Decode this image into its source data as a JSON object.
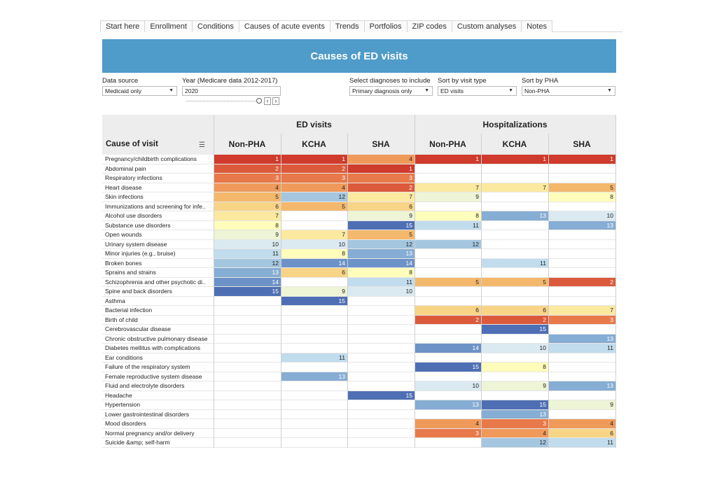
{
  "tabs": [
    "Start here",
    "Enrollment",
    "Conditions",
    "Causes of acute events",
    "Trends",
    "Portfolios",
    "ZIP codes",
    "Custom analyses",
    "Notes"
  ],
  "active_tab": 3,
  "title": "Causes of ED visits",
  "controls": {
    "data_source_label": "Data source",
    "data_source_value": "Medicaid only",
    "year_label": "Year (Medicare data 2012-2017)",
    "year_value": "2020",
    "diagnoses_label": "Select diagnoses to include",
    "diagnoses_value": "Primary diagnosis only",
    "sort_visit_label": "Sort by visit type",
    "sort_visit_value": "ED visits",
    "sort_pha_label": "Sort by PHA",
    "sort_pha_value": "Non-PHA"
  },
  "table": {
    "cause_header": "Cause of visit",
    "groups": [
      "ED visits",
      "Hospitalizations"
    ],
    "columns": [
      "Non-PHA",
      "KCHA",
      "SHA",
      "Non-PHA",
      "KCHA",
      "SHA"
    ],
    "rows": [
      {
        "cause": "Pregnancy/childbirth complications",
        "ranks": [
          1,
          1,
          4,
          1,
          1,
          1
        ]
      },
      {
        "cause": "Abdominal pain",
        "ranks": [
          2,
          2,
          1,
          null,
          null,
          null
        ]
      },
      {
        "cause": "Respiratory infections",
        "ranks": [
          3,
          3,
          3,
          null,
          null,
          null
        ]
      },
      {
        "cause": "Heart disease",
        "ranks": [
          4,
          4,
          2,
          7,
          7,
          5
        ]
      },
      {
        "cause": "Skin infections",
        "ranks": [
          5,
          12,
          7,
          9,
          null,
          8
        ]
      },
      {
        "cause": "Immunizations and screening for infe..",
        "ranks": [
          6,
          5,
          6,
          null,
          null,
          null
        ]
      },
      {
        "cause": "Alcohol use disorders",
        "ranks": [
          7,
          null,
          9,
          8,
          13,
          10
        ]
      },
      {
        "cause": "Substance use disorders",
        "ranks": [
          8,
          null,
          15,
          11,
          null,
          13
        ]
      },
      {
        "cause": "Open wounds",
        "ranks": [
          9,
          7,
          5,
          null,
          null,
          null
        ]
      },
      {
        "cause": "Urinary system disease",
        "ranks": [
          10,
          10,
          12,
          12,
          null,
          null
        ]
      },
      {
        "cause": "Minor injuries (e.g., bruise)",
        "ranks": [
          11,
          8,
          13,
          null,
          null,
          null
        ]
      },
      {
        "cause": "Broken bones",
        "ranks": [
          12,
          14,
          14,
          null,
          11,
          null
        ]
      },
      {
        "cause": "Sprains and strains",
        "ranks": [
          13,
          6,
          8,
          null,
          null,
          null
        ]
      },
      {
        "cause": "Schizophrenia and other psychotic di..",
        "ranks": [
          14,
          null,
          11,
          5,
          5,
          2
        ]
      },
      {
        "cause": "Spine and back disorders",
        "ranks": [
          15,
          9,
          10,
          null,
          null,
          null
        ]
      },
      {
        "cause": "Asthma",
        "ranks": [
          null,
          15,
          null,
          null,
          null,
          null
        ]
      },
      {
        "cause": "Bacterial infection",
        "ranks": [
          null,
          null,
          null,
          6,
          6,
          7
        ]
      },
      {
        "cause": "Birth of child",
        "ranks": [
          null,
          null,
          null,
          2,
          2,
          3
        ]
      },
      {
        "cause": "Cerebrovascular disease",
        "ranks": [
          null,
          null,
          null,
          null,
          15,
          null
        ]
      },
      {
        "cause": "Chronic obstructive pulmonary disease",
        "ranks": [
          null,
          null,
          null,
          null,
          null,
          13
        ]
      },
      {
        "cause": "Diabetes mellitus with complications",
        "ranks": [
          null,
          null,
          null,
          14,
          10,
          11
        ]
      },
      {
        "cause": "Ear conditions",
        "ranks": [
          null,
          11,
          null,
          null,
          null,
          null
        ]
      },
      {
        "cause": "Failure of the respiratory system",
        "ranks": [
          null,
          null,
          null,
          15,
          8,
          null
        ]
      },
      {
        "cause": "Female reproductive system disease",
        "ranks": [
          null,
          13,
          null,
          null,
          null,
          null
        ]
      },
      {
        "cause": "Fluid and electrolyte disorders",
        "ranks": [
          null,
          null,
          null,
          10,
          9,
          13
        ]
      },
      {
        "cause": "Headache",
        "ranks": [
          null,
          null,
          15,
          null,
          null,
          null
        ]
      },
      {
        "cause": "Hypertension",
        "ranks": [
          null,
          null,
          null,
          13,
          15,
          9
        ]
      },
      {
        "cause": "Lower gastrointestinal disorders",
        "ranks": [
          null,
          null,
          null,
          null,
          13,
          null
        ]
      },
      {
        "cause": "Mood disorders",
        "ranks": [
          null,
          null,
          null,
          4,
          3,
          4
        ]
      },
      {
        "cause": "Normal pregnancy and/or delivery",
        "ranks": [
          null,
          null,
          null,
          3,
          4,
          6
        ]
      },
      {
        "cause": "Suicide &amp; self-harm",
        "ranks": [
          null,
          null,
          null,
          null,
          12,
          11
        ]
      }
    ]
  },
  "rank_colors": {
    "1": "#cf3b2c",
    "2": "#dc5a3c",
    "3": "#e8794a",
    "4": "#ef9a5a",
    "5": "#f4b86c",
    "6": "#f8d487",
    "7": "#fbe9a0",
    "8": "#fefdbb",
    "9": "#eef4d6",
    "10": "#dbeaf1",
    "11": "#c1dcec",
    "12": "#a4c6df",
    "13": "#86add3",
    "14": "#6d92c7",
    "15": "#4f6fb5"
  }
}
